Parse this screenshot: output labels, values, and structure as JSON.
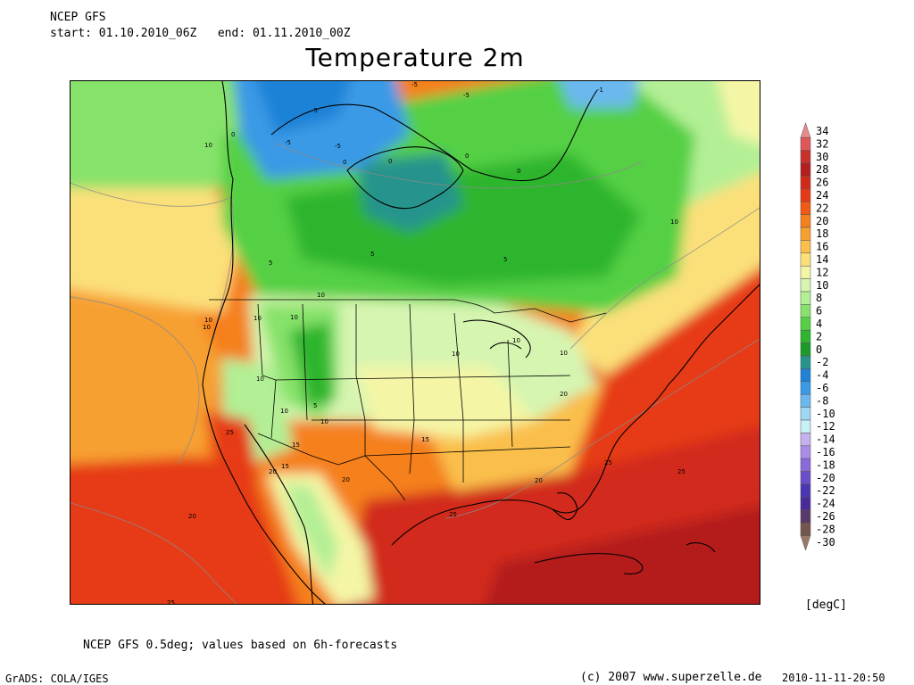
{
  "header": {
    "model": "NCEP GFS",
    "period": "start: 01.10.2010_06Z   end: 01.11.2010_00Z"
  },
  "title": "Temperature 2m",
  "footer": {
    "note": "NCEP GFS 0.5deg; values based on 6h-forecasts",
    "grads": "GrADS: COLA/IGES",
    "copyright": "(c) 2007 www.superzelle.de",
    "timestamp": "2010-11-11-20:50"
  },
  "legend": {
    "units": "[degC]",
    "levels": [
      {
        "label": "34",
        "color": "#e88a8a"
      },
      {
        "label": "32",
        "color": "#e0575a"
      },
      {
        "label": "30",
        "color": "#c8302c"
      },
      {
        "label": "28",
        "color": "#b41e1e"
      },
      {
        "label": "26",
        "color": "#d22a1a"
      },
      {
        "label": "24",
        "color": "#e63a17"
      },
      {
        "label": "22",
        "color": "#f05a14"
      },
      {
        "label": "20",
        "color": "#f5801e"
      },
      {
        "label": "18",
        "color": "#f7a030"
      },
      {
        "label": "16",
        "color": "#fabf4c"
      },
      {
        "label": "14",
        "color": "#fbe07a"
      },
      {
        "label": "12",
        "color": "#f4f6a6"
      },
      {
        "label": "10",
        "color": "#d6f5b0"
      },
      {
        "label": "8",
        "color": "#b3ef95"
      },
      {
        "label": "6",
        "color": "#86e26b"
      },
      {
        "label": "4",
        "color": "#55d044"
      },
      {
        "label": "2",
        "color": "#2eb52d"
      },
      {
        "label": "0",
        "color": "#1c9a2a"
      },
      {
        "label": "-2",
        "color": "#26948c"
      },
      {
        "label": "-4",
        "color": "#1f82d6"
      },
      {
        "label": "-6",
        "color": "#3a9ae6"
      },
      {
        "label": "-8",
        "color": "#6bb8ee"
      },
      {
        "label": "-10",
        "color": "#9fd6f2"
      },
      {
        "label": "-12",
        "color": "#c8f1f7"
      },
      {
        "label": "-14",
        "color": "#c5b1ee"
      },
      {
        "label": "-16",
        "color": "#a98ce6"
      },
      {
        "label": "-18",
        "color": "#8a6ad8"
      },
      {
        "label": "-20",
        "color": "#6a4ec8"
      },
      {
        "label": "-22",
        "color": "#4a36b0"
      },
      {
        "label": "-24",
        "color": "#4a2a9a"
      },
      {
        "label": "-26",
        "color": "#5a3a6a"
      },
      {
        "label": "-28",
        "color": "#74564e"
      },
      {
        "label": "-30",
        "color": "#9a7a66"
      }
    ]
  },
  "map_labels": [
    "-5",
    "-5",
    "-1",
    "-5",
    "-5",
    "0",
    "0",
    "-5",
    "0",
    "0",
    "0",
    "10",
    "10",
    "5",
    "5",
    "5",
    "10",
    "10",
    "10",
    "10",
    "10",
    "10",
    "10",
    "10",
    "10",
    "10",
    "10",
    "5",
    "15",
    "15",
    "15",
    "20",
    "25",
    "20",
    "20",
    "20",
    "25",
    "25",
    "25",
    "20",
    "25"
  ]
}
